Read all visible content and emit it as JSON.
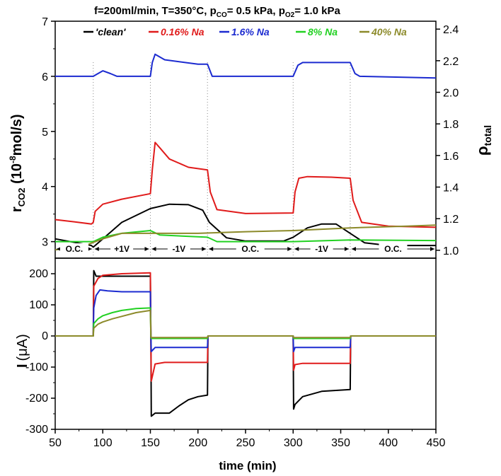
{
  "chart_data": [
    {
      "type": "line",
      "title_parts": {
        "a": "f=200ml/min, T=350°C, p",
        "a_sub": "CO",
        "b": "= 0.5 kPa, p",
        "b_sub": "O2",
        "c": "= 1.0 kPa"
      },
      "ylabel_left": {
        "main": "r",
        "sub": "CO2",
        "rest": " (10",
        "sup": "-8",
        "unit": "mol/s)"
      },
      "ylabel_right": {
        "main": "ρ",
        "sub": "total"
      },
      "xlim": [
        50,
        450
      ],
      "ylim": [
        2.7,
        7
      ],
      "yticks": [
        3,
        4,
        5,
        6,
        7
      ],
      "ytick_labels": [
        "3",
        "4",
        "5",
        "6",
        "7"
      ],
      "ylim_right": [
        0.95,
        2.45
      ],
      "yticks_right": [
        1.0,
        1.2,
        1.4,
        1.6,
        1.8,
        2.0,
        2.2,
        2.4
      ],
      "ytick_labels_right": [
        "1.0",
        "1.2",
        "1.4",
        "1.6",
        "1.8",
        "2.0",
        "2.2",
        "2.4"
      ],
      "phase_boundaries": [
        90,
        150,
        210,
        300,
        360
      ],
      "phases": [
        {
          "label": "O.C.",
          "start": 50,
          "end": 90
        },
        {
          "label": "+1V",
          "start": 90,
          "end": 150
        },
        {
          "label": "-1V",
          "start": 150,
          "end": 210
        },
        {
          "label": "O.C.",
          "start": 210,
          "end": 300
        },
        {
          "label": "-1V",
          "start": 300,
          "end": 360
        },
        {
          "label": "O.C.",
          "start": 360,
          "end": 450
        }
      ],
      "series": [
        {
          "name": "'clean'",
          "color": "#000000",
          "x": [
            50,
            88,
            90,
            100,
            120,
            150,
            170,
            190,
            205,
            212,
            230,
            250,
            290,
            300,
            315,
            330,
            345,
            360,
            375,
            400,
            450
          ],
          "y": [
            3.05,
            2.93,
            2.9,
            3.05,
            3.35,
            3.6,
            3.68,
            3.67,
            3.57,
            3.35,
            3.07,
            3.01,
            3.01,
            3.08,
            3.25,
            3.32,
            3.32,
            3.15,
            2.98,
            2.93,
            2.93
          ]
        },
        {
          "name": "0.16% Na",
          "color": "#e01b1b",
          "x": [
            50,
            70,
            88,
            90,
            92,
            100,
            120,
            150,
            152,
            155,
            160,
            170,
            190,
            210,
            213,
            220,
            250,
            300,
            302,
            306,
            315,
            340,
            360,
            363,
            372,
            400,
            450
          ],
          "y": [
            3.4,
            3.36,
            3.32,
            3.35,
            3.55,
            3.68,
            3.77,
            3.87,
            4.3,
            4.8,
            4.7,
            4.5,
            4.35,
            4.3,
            3.9,
            3.58,
            3.51,
            3.52,
            3.9,
            4.15,
            4.18,
            4.17,
            4.15,
            3.75,
            3.35,
            3.28,
            3.26
          ]
        },
        {
          "name": "1.6% Na",
          "color": "#1c2bd0",
          "x": [
            50,
            90,
            95,
            100,
            108,
            115,
            150,
            152,
            155,
            165,
            200,
            210,
            215,
            300,
            305,
            310,
            360,
            365,
            370,
            450
          ],
          "y": [
            6.0,
            6.0,
            6.05,
            6.1,
            6.05,
            6.0,
            6.0,
            6.25,
            6.4,
            6.3,
            6.22,
            6.22,
            6.0,
            6.0,
            6.2,
            6.25,
            6.25,
            6.05,
            6.0,
            5.97
          ]
        },
        {
          "name": "8% Na",
          "color": "#22d122",
          "x": [
            50,
            90,
            100,
            120,
            150,
            160,
            210,
            220,
            300,
            360,
            450
          ],
          "y": [
            3.0,
            3.0,
            3.08,
            3.15,
            3.2,
            3.12,
            3.08,
            3.0,
            3.0,
            3.03,
            3.02
          ]
        },
        {
          "name": "40% Na",
          "color": "#8c8a2a",
          "x": [
            50,
            80,
            100,
            120,
            150,
            200,
            250,
            300,
            360,
            420,
            450
          ],
          "y": [
            2.85,
            2.92,
            3.05,
            3.15,
            3.15,
            3.15,
            3.18,
            3.2,
            3.25,
            3.28,
            3.3
          ]
        }
      ]
    },
    {
      "type": "line",
      "ylabel": {
        "main": "I",
        "unit": "(μA)"
      },
      "xlabel": "time (min)",
      "xlim": [
        50,
        450
      ],
      "xticks": [
        50,
        100,
        150,
        200,
        250,
        300,
        350,
        400,
        450
      ],
      "xtick_labels": [
        "50",
        "100",
        "150",
        "200",
        "250",
        "300",
        "350",
        "400",
        "450"
      ],
      "ylim": [
        -300,
        250
      ],
      "yticks": [
        -300,
        -200,
        -100,
        0,
        100,
        200
      ],
      "ytick_labels": [
        "-300",
        "-200",
        "-100",
        "0",
        "100",
        "200"
      ],
      "series": [
        {
          "name": "'clean'",
          "color": "#000000",
          "x": [
            50,
            90,
            90.5,
            93,
            100,
            150,
            150.5,
            151,
            155,
            160,
            170,
            180,
            190,
            200,
            210,
            210.5,
            300,
            300.5,
            302,
            310,
            330,
            360,
            360.5,
            450
          ],
          "y": [
            0,
            0,
            210,
            192,
            192,
            192,
            0,
            -258,
            -248,
            -248,
            -248,
            -225,
            -205,
            -195,
            -190,
            0,
            0,
            -235,
            -220,
            -195,
            -178,
            -172,
            0,
            0
          ]
        },
        {
          "name": "0.16% Na",
          "color": "#e01b1b",
          "x": [
            50,
            90,
            90.5,
            95,
            100,
            120,
            150,
            150.5,
            151,
            155,
            165,
            210,
            210.5,
            300,
            300.5,
            302,
            310,
            360,
            360.5,
            450
          ],
          "y": [
            0,
            0,
            160,
            185,
            195,
            200,
            203,
            0,
            -145,
            -90,
            -85,
            -85,
            0,
            0,
            -110,
            -92,
            -88,
            -88,
            0,
            0
          ]
        },
        {
          "name": "1.6% Na",
          "color": "#1c2bd0",
          "x": [
            50,
            90,
            90.5,
            93,
            97,
            105,
            120,
            150,
            150.5,
            151,
            155,
            210,
            210.5,
            300,
            300.5,
            302,
            360,
            360.5,
            450
          ],
          "y": [
            0,
            0,
            90,
            130,
            148,
            145,
            142,
            142,
            0,
            -50,
            -37,
            -37,
            0,
            0,
            -50,
            -37,
            -37,
            0,
            0
          ]
        },
        {
          "name": "8% Na",
          "color": "#22d122",
          "x": [
            50,
            90,
            90.5,
            95,
            100,
            110,
            120,
            135,
            150,
            150.5,
            151,
            210,
            210.5,
            300,
            300.5,
            360,
            360.5,
            450
          ],
          "y": [
            0,
            0,
            40,
            55,
            65,
            75,
            82,
            88,
            90,
            0,
            -8,
            -8,
            0,
            0,
            -8,
            -8,
            0,
            0
          ]
        },
        {
          "name": "40% Na",
          "color": "#8c8a2a",
          "x": [
            50,
            90,
            90.5,
            95,
            100,
            110,
            120,
            135,
            150,
            150.5,
            151,
            210,
            210.5,
            300,
            300.5,
            360,
            360.5,
            450
          ],
          "y": [
            0,
            0,
            25,
            38,
            45,
            55,
            63,
            75,
            82,
            0,
            -5,
            -5,
            0,
            0,
            -5,
            -5,
            0,
            0
          ]
        }
      ]
    }
  ]
}
